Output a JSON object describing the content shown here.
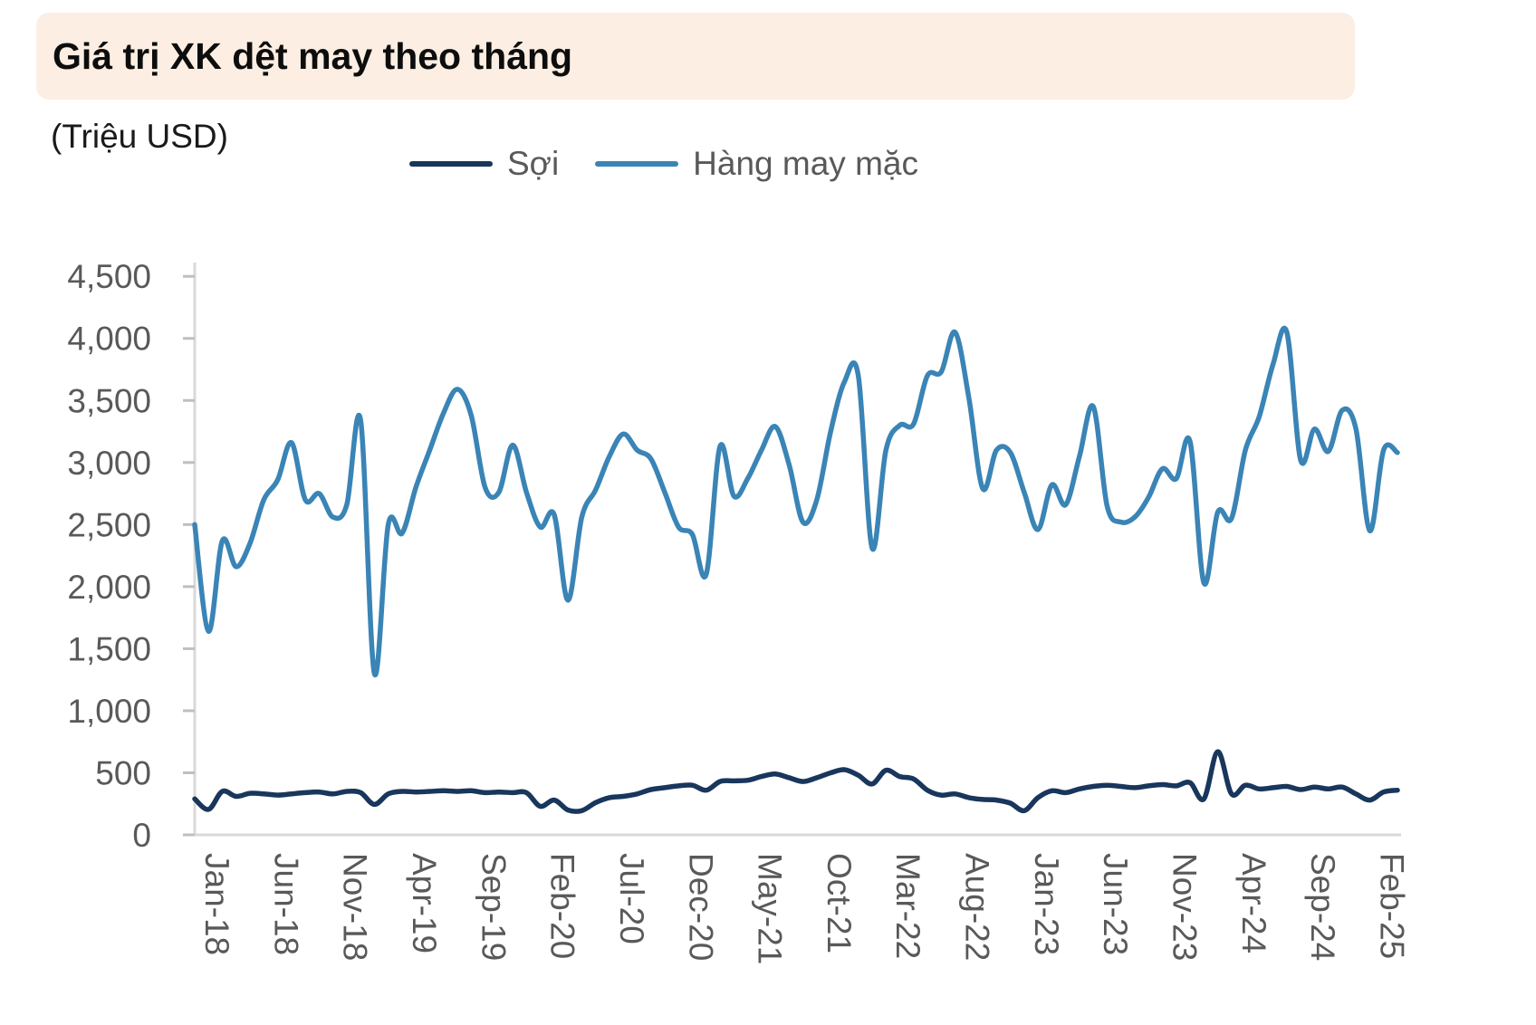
{
  "header": {
    "title": "Giá trị XK dệt may theo tháng",
    "background": "#fceee2",
    "title_color": "#0d0d0d"
  },
  "unit_label": "(Triệu USD)",
  "legend": {
    "items": [
      {
        "label": "Sợi",
        "color": "#19365c"
      },
      {
        "label": "Hàng may mặc",
        "color": "#3a84b6"
      }
    ]
  },
  "axis_style": {
    "text_color": "#595959",
    "line_color": "#d9d9d9",
    "tick_color": "#bfbfbf"
  },
  "chart_data": {
    "type": "line",
    "title": "Giá trị XK dệt may theo tháng",
    "ylabel": "(Triệu USD)",
    "xlabel": "",
    "ylim": [
      0,
      4500
    ],
    "y_ticks": [
      0,
      500,
      1000,
      1500,
      2000,
      2500,
      3000,
      3500,
      4000,
      4500
    ],
    "grid": false,
    "legend_position": "top",
    "x_tick_every": 5,
    "x_tick_labels": [
      "Jan-18",
      "Jun-18",
      "Nov-18",
      "Apr-19",
      "Sep-19",
      "Feb-20",
      "Jul-20",
      "Dec-20",
      "May-21",
      "Oct-21",
      "Mar-22",
      "Aug-22",
      "Jan-23",
      "Jun-23",
      "Nov-23",
      "Apr-24",
      "Sep-24",
      "Feb-25"
    ],
    "months": [
      "Jan-18",
      "Feb-18",
      "Mar-18",
      "Apr-18",
      "May-18",
      "Jun-18",
      "Jul-18",
      "Aug-18",
      "Sep-18",
      "Oct-18",
      "Nov-18",
      "Dec-18",
      "Jan-19",
      "Feb-19",
      "Mar-19",
      "Apr-19",
      "May-19",
      "Jun-19",
      "Jul-19",
      "Aug-19",
      "Sep-19",
      "Oct-19",
      "Nov-19",
      "Dec-19",
      "Jan-20",
      "Feb-20",
      "Mar-20",
      "Apr-20",
      "May-20",
      "Jun-20",
      "Jul-20",
      "Aug-20",
      "Sep-20",
      "Oct-20",
      "Nov-20",
      "Dec-20",
      "Jan-21",
      "Feb-21",
      "Mar-21",
      "Apr-21",
      "May-21",
      "Jun-21",
      "Jul-21",
      "Aug-21",
      "Sep-21",
      "Oct-21",
      "Nov-21",
      "Dec-21",
      "Jan-22",
      "Feb-22",
      "Mar-22",
      "Apr-22",
      "May-22",
      "Jun-22",
      "Jul-22",
      "Aug-22",
      "Sep-22",
      "Oct-22",
      "Nov-22",
      "Dec-22",
      "Jan-23",
      "Feb-23",
      "Mar-23",
      "Apr-23",
      "May-23",
      "Jun-23",
      "Jul-23",
      "Aug-23",
      "Sep-23",
      "Oct-23",
      "Nov-23",
      "Dec-23",
      "Jan-24",
      "Feb-24",
      "Mar-24",
      "Apr-24",
      "May-24",
      "Jun-24",
      "Jul-24",
      "Aug-24",
      "Sep-24",
      "Oct-24",
      "Nov-24",
      "Dec-24",
      "Jan-25",
      "Feb-25",
      "Mar-25",
      "Apr-25"
    ],
    "series": [
      {
        "name": "Sợi",
        "color": "#19365c",
        "values": [
          290,
          205,
          350,
          310,
          335,
          330,
          320,
          330,
          340,
          345,
          330,
          350,
          340,
          245,
          330,
          350,
          345,
          350,
          355,
          350,
          355,
          340,
          345,
          340,
          340,
          230,
          280,
          200,
          195,
          260,
          300,
          310,
          330,
          365,
          380,
          395,
          400,
          360,
          430,
          435,
          440,
          470,
          490,
          460,
          430,
          460,
          500,
          525,
          480,
          410,
          520,
          470,
          450,
          360,
          320,
          330,
          300,
          285,
          280,
          255,
          195,
          300,
          355,
          340,
          370,
          390,
          400,
          390,
          380,
          395,
          405,
          395,
          420,
          290,
          670,
          330,
          400,
          370,
          380,
          390,
          365,
          385,
          370,
          385,
          330,
          280,
          345,
          360
        ]
      },
      {
        "name": "Hàng may mặc",
        "color": "#3a84b6",
        "values": [
          2500,
          1640,
          2370,
          2160,
          2350,
          2700,
          2860,
          3160,
          2700,
          2750,
          2560,
          2660,
          3340,
          1300,
          2500,
          2430,
          2800,
          3100,
          3400,
          3590,
          3380,
          2800,
          2760,
          3140,
          2760,
          2480,
          2580,
          1890,
          2560,
          2780,
          3050,
          3230,
          3100,
          3030,
          2760,
          2480,
          2420,
          2100,
          3130,
          2730,
          2870,
          3100,
          3290,
          2980,
          2520,
          2700,
          3250,
          3650,
          3700,
          2310,
          3100,
          3300,
          3310,
          3700,
          3730,
          4050,
          3520,
          2790,
          3100,
          3080,
          2760,
          2460,
          2820,
          2660,
          3050,
          3450,
          2650,
          2520,
          2560,
          2720,
          2950,
          2870,
          3170,
          2030,
          2600,
          2550,
          3100,
          3370,
          3790,
          4050,
          3020,
          3270,
          3090,
          3420,
          3270,
          2450,
          3100,
          3080
        ]
      }
    ]
  }
}
